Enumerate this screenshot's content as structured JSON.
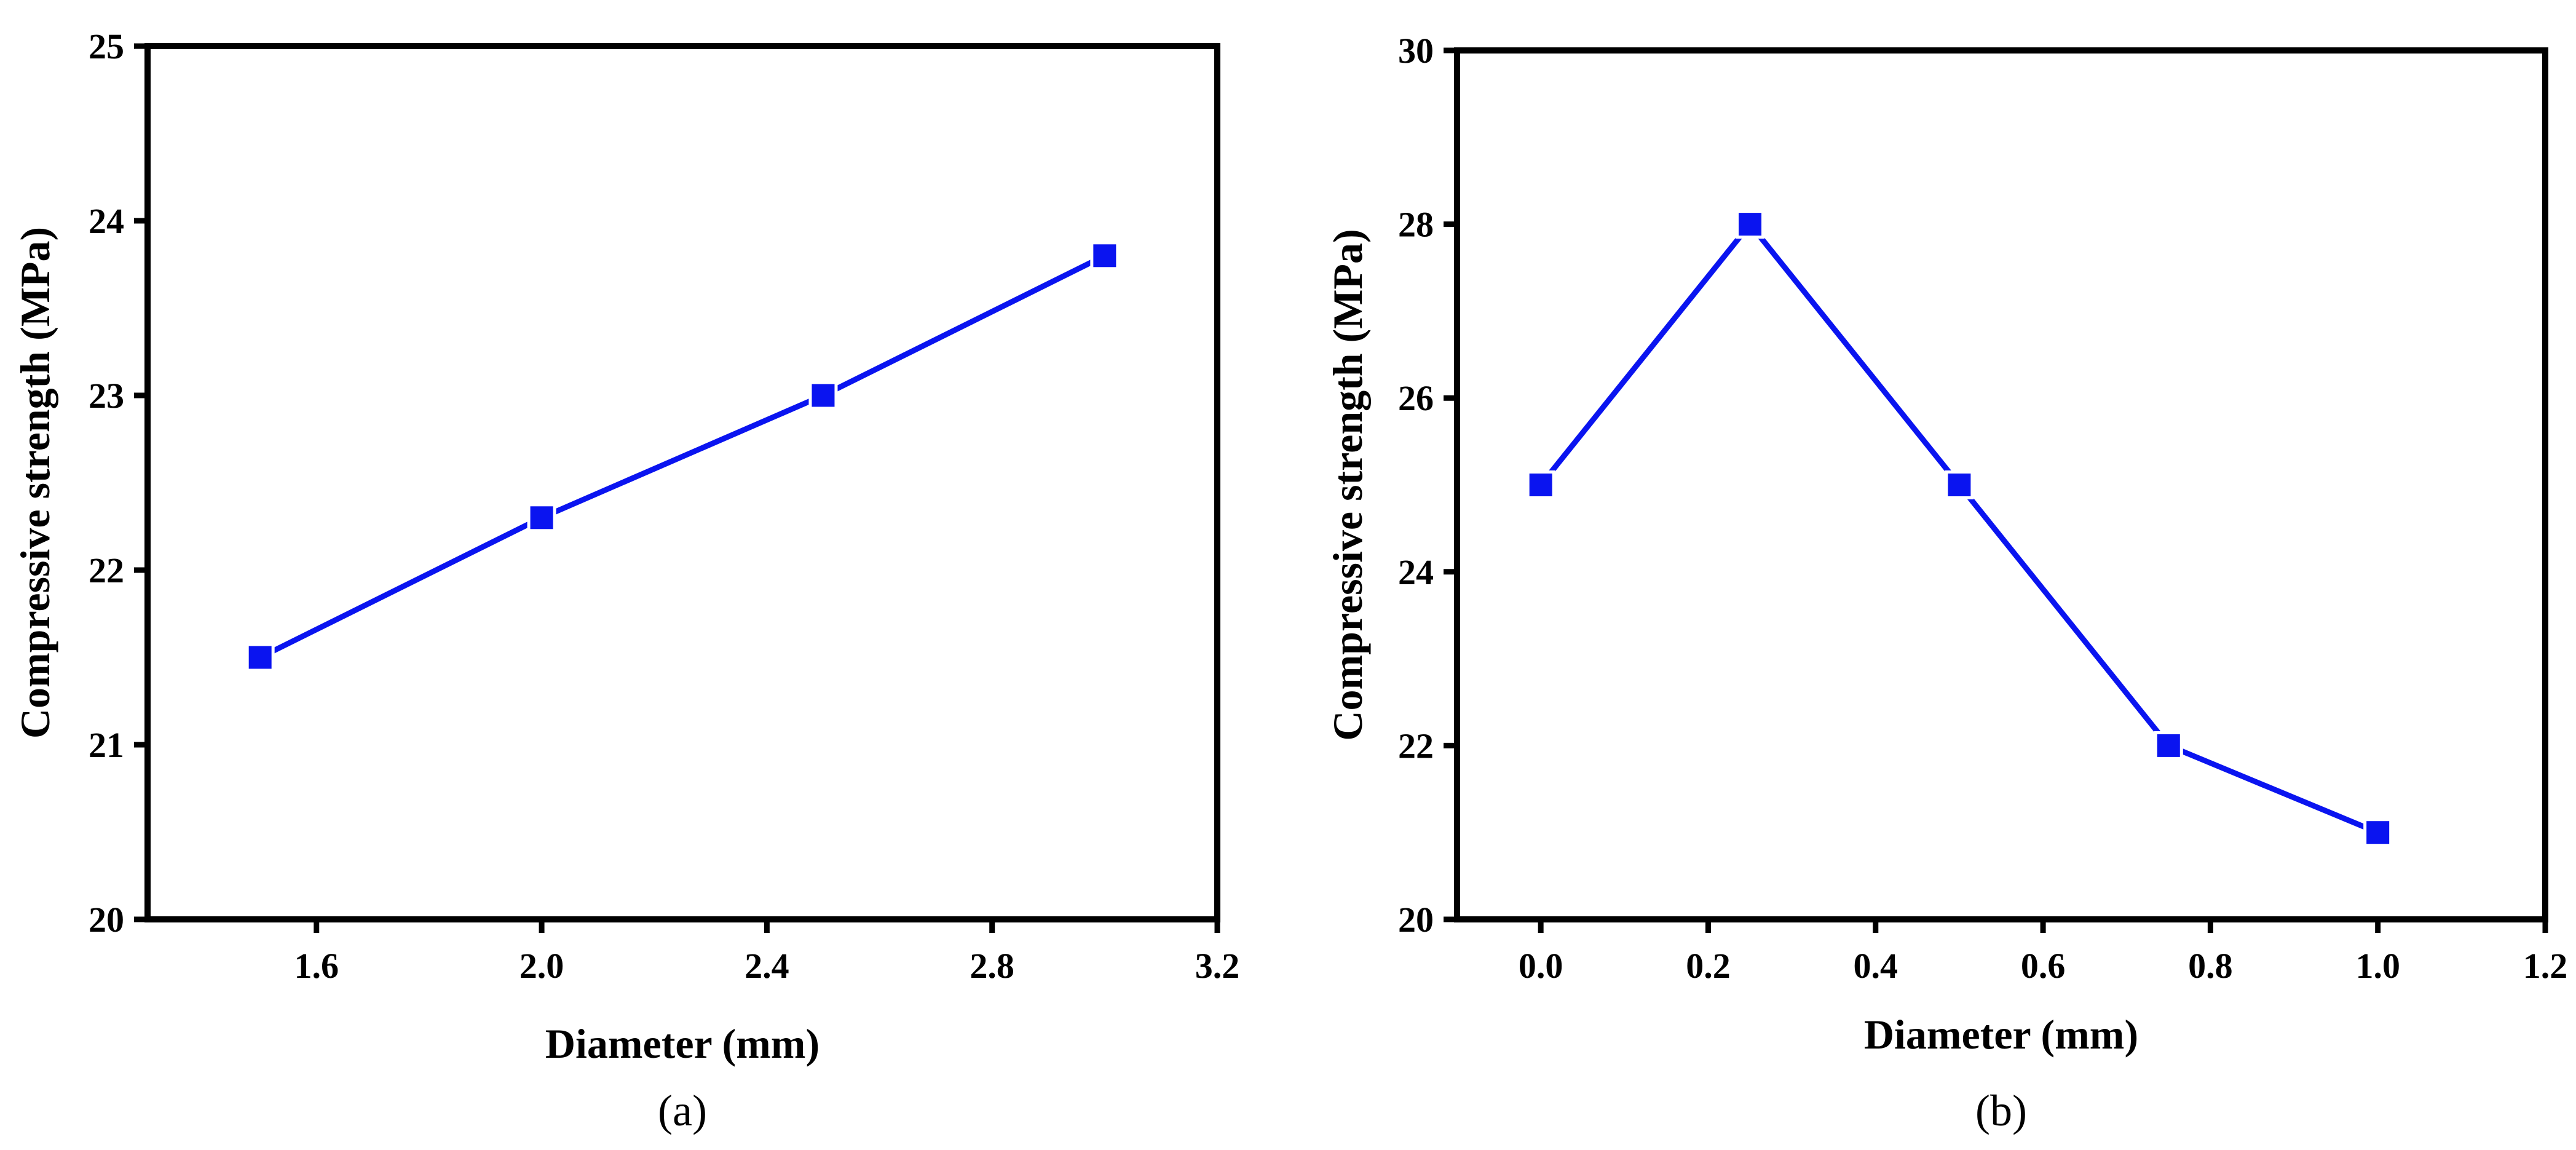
{
  "chart_data": [
    {
      "type": "line",
      "panel_label": "(a)",
      "xlabel": "Diameter (mm)",
      "ylabel": "Compressive strength (MPa)",
      "xlim": [
        1.3,
        3.2
      ],
      "ylim": [
        20,
        25
      ],
      "xticks": [
        1.6,
        2.0,
        2.4,
        2.8,
        3.2
      ],
      "xtick_labels": [
        "1.6",
        "2.0",
        "2.4",
        "2.8",
        "3.2"
      ],
      "yticks": [
        20,
        21,
        22,
        23,
        24,
        25
      ],
      "ytick_labels": [
        "20",
        "21",
        "22",
        "23",
        "24",
        "25"
      ],
      "series": [
        {
          "name": "Compressive strength",
          "x": [
            1.5,
            2.0,
            2.5,
            3.0
          ],
          "y": [
            21.5,
            22.3,
            23.0,
            23.8
          ],
          "color": "#0a14f0",
          "marker": "square"
        }
      ]
    },
    {
      "type": "line",
      "panel_label": "(b)",
      "xlabel": "Diameter (mm)",
      "ylabel": "Compressive strength (MPa)",
      "xlim": [
        -0.1,
        1.2
      ],
      "ylim": [
        20,
        30
      ],
      "xticks": [
        0.0,
        0.2,
        0.4,
        0.6,
        0.8,
        1.0,
        1.2
      ],
      "xtick_labels": [
        "0.0",
        "0.2",
        "0.4",
        "0.6",
        "0.8",
        "1.0",
        "1.2"
      ],
      "yticks": [
        20,
        22,
        24,
        26,
        28,
        30
      ],
      "ytick_labels": [
        "20",
        "22",
        "24",
        "26",
        "28",
        "30"
      ],
      "series": [
        {
          "name": "Compressive strength",
          "x": [
            0.0,
            0.25,
            0.5,
            0.75,
            1.0
          ],
          "y": [
            25,
            28,
            25,
            22,
            21
          ],
          "color": "#0a14f0",
          "marker": "square"
        }
      ]
    }
  ]
}
